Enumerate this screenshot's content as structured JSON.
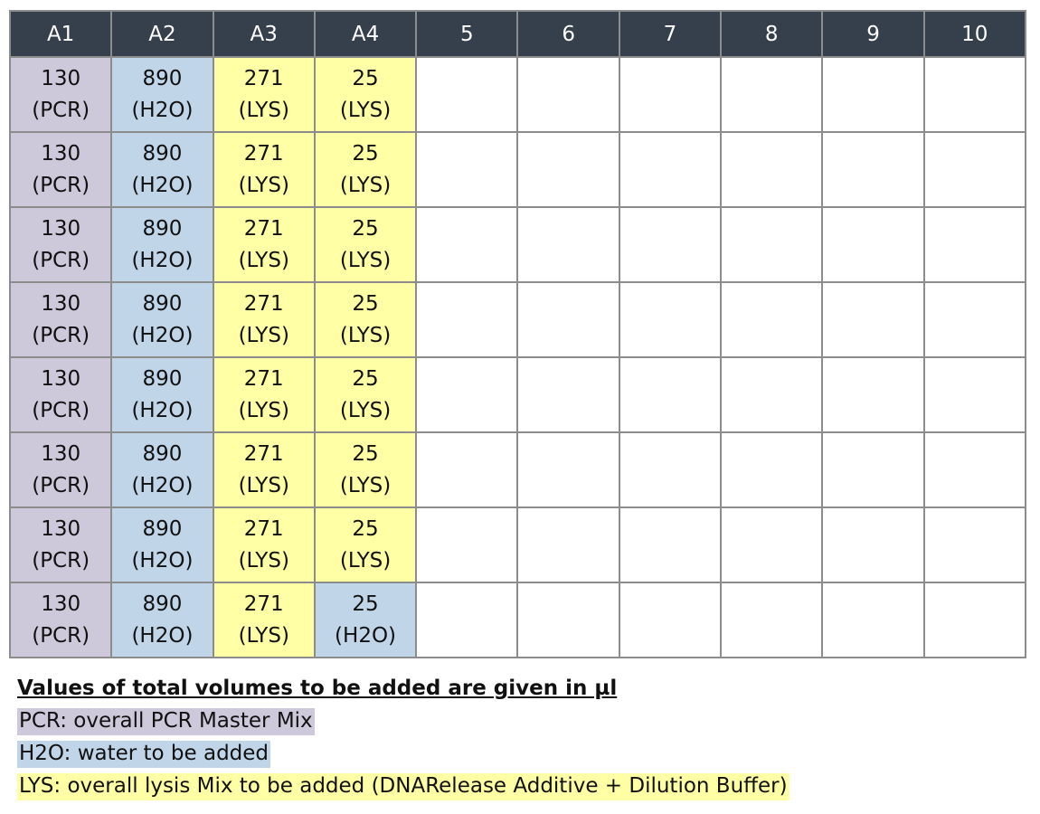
{
  "colors": {
    "header_bg": "#363f4c",
    "header_text": "#ffffff",
    "pcr": "#cdc8da",
    "h2o": "#c1d5e9",
    "lys": "#ffffa6",
    "border": "#8c8c8c"
  },
  "plate": {
    "headers": [
      "A1",
      "A2",
      "A3",
      "A4",
      "5",
      "6",
      "7",
      "8",
      "9",
      "10"
    ],
    "rows": [
      [
        {
          "value": "130",
          "tag": "(PCR)",
          "type": "pcr"
        },
        {
          "value": "890",
          "tag": "(H2O)",
          "type": "h2o"
        },
        {
          "value": "271",
          "tag": "(LYS)",
          "type": "lys"
        },
        {
          "value": "25",
          "tag": "(LYS)",
          "type": "lys"
        }
      ],
      [
        {
          "value": "130",
          "tag": "(PCR)",
          "type": "pcr"
        },
        {
          "value": "890",
          "tag": "(H2O)",
          "type": "h2o"
        },
        {
          "value": "271",
          "tag": "(LYS)",
          "type": "lys"
        },
        {
          "value": "25",
          "tag": "(LYS)",
          "type": "lys"
        }
      ],
      [
        {
          "value": "130",
          "tag": "(PCR)",
          "type": "pcr"
        },
        {
          "value": "890",
          "tag": "(H2O)",
          "type": "h2o"
        },
        {
          "value": "271",
          "tag": "(LYS)",
          "type": "lys"
        },
        {
          "value": "25",
          "tag": "(LYS)",
          "type": "lys"
        }
      ],
      [
        {
          "value": "130",
          "tag": "(PCR)",
          "type": "pcr"
        },
        {
          "value": "890",
          "tag": "(H2O)",
          "type": "h2o"
        },
        {
          "value": "271",
          "tag": "(LYS)",
          "type": "lys"
        },
        {
          "value": "25",
          "tag": "(LYS)",
          "type": "lys"
        }
      ],
      [
        {
          "value": "130",
          "tag": "(PCR)",
          "type": "pcr"
        },
        {
          "value": "890",
          "tag": "(H2O)",
          "type": "h2o"
        },
        {
          "value": "271",
          "tag": "(LYS)",
          "type": "lys"
        },
        {
          "value": "25",
          "tag": "(LYS)",
          "type": "lys"
        }
      ],
      [
        {
          "value": "130",
          "tag": "(PCR)",
          "type": "pcr"
        },
        {
          "value": "890",
          "tag": "(H2O)",
          "type": "h2o"
        },
        {
          "value": "271",
          "tag": "(LYS)",
          "type": "lys"
        },
        {
          "value": "25",
          "tag": "(LYS)",
          "type": "lys"
        }
      ],
      [
        {
          "value": "130",
          "tag": "(PCR)",
          "type": "pcr"
        },
        {
          "value": "890",
          "tag": "(H2O)",
          "type": "h2o"
        },
        {
          "value": "271",
          "tag": "(LYS)",
          "type": "lys"
        },
        {
          "value": "25",
          "tag": "(LYS)",
          "type": "lys"
        }
      ],
      [
        {
          "value": "130",
          "tag": "(PCR)",
          "type": "pcr"
        },
        {
          "value": "890",
          "tag": "(H2O)",
          "type": "h2o"
        },
        {
          "value": "271",
          "tag": "(LYS)",
          "type": "lys"
        },
        {
          "value": "25",
          "tag": "(H2O)",
          "type": "h2o"
        }
      ]
    ]
  },
  "legend": {
    "title": "Values of total volumes to be added are given in µl",
    "pcr": "PCR: overall PCR Master Mix",
    "h2o": "H2O: water to be added",
    "lys": "LYS: overall lysis Mix to be added (DNARelease Additive + Dilution Buffer)"
  }
}
